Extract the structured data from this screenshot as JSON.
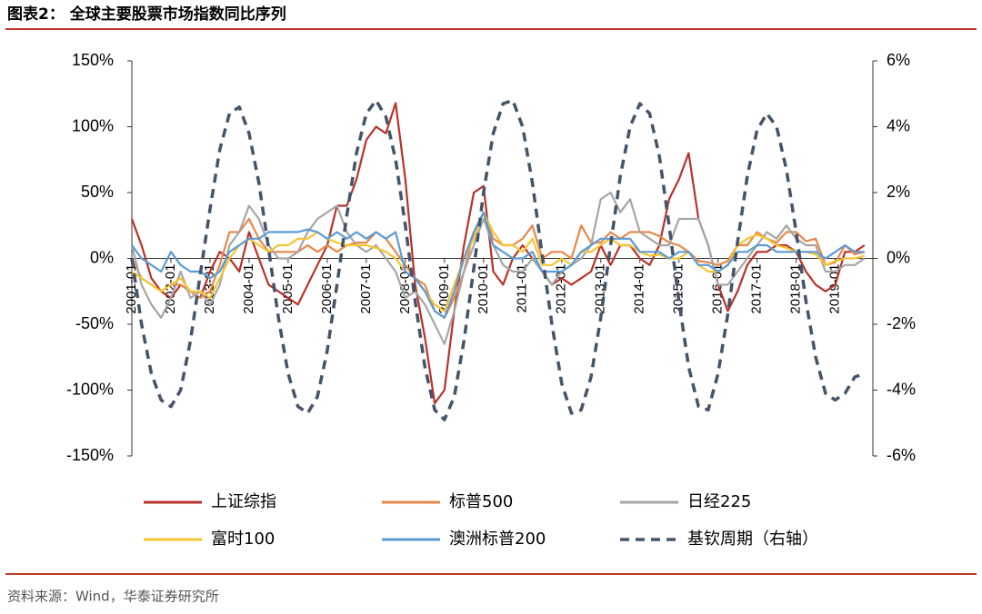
{
  "chart_data": {
    "type": "line",
    "title": "图表2： 全球主要股票市场指数同比序列",
    "source": "资料来源：Wind，华泰证券研究所",
    "x": [
      "2001-01",
      "2001-04",
      "2001-07",
      "2001-10",
      "2002-01",
      "2002-04",
      "2002-07",
      "2002-10",
      "2003-01",
      "2003-04",
      "2003-07",
      "2003-10",
      "2004-01",
      "2004-04",
      "2004-07",
      "2004-10",
      "2005-01",
      "2005-04",
      "2005-07",
      "2005-10",
      "2006-01",
      "2006-04",
      "2006-07",
      "2006-10",
      "2007-01",
      "2007-04",
      "2007-07",
      "2007-10",
      "2008-01",
      "2008-04",
      "2008-07",
      "2008-10",
      "2009-01",
      "2009-04",
      "2009-07",
      "2009-10",
      "2010-01",
      "2010-04",
      "2010-07",
      "2010-10",
      "2011-01",
      "2011-04",
      "2011-07",
      "2011-10",
      "2012-01",
      "2012-04",
      "2012-07",
      "2012-10",
      "2013-01",
      "2013-04",
      "2013-07",
      "2013-10",
      "2014-01",
      "2014-04",
      "2014-07",
      "2014-10",
      "2015-01",
      "2015-04",
      "2015-07",
      "2015-10",
      "2016-01",
      "2016-04",
      "2016-07",
      "2016-10",
      "2017-01",
      "2017-04",
      "2017-07",
      "2017-10",
      "2018-01",
      "2018-04",
      "2018-07",
      "2018-10",
      "2019-01",
      "2019-04",
      "2019-07",
      "2019-10"
    ],
    "xlim": [
      "2001-01",
      "2019-12"
    ],
    "xticks": [
      "2001-01",
      "2002-01",
      "2003-01",
      "2004-01",
      "2005-01",
      "2006-01",
      "2007-01",
      "2008-01",
      "2009-01",
      "2010-01",
      "2011-01",
      "2012-01",
      "2013-01",
      "2014-01",
      "2015-01",
      "2016-01",
      "2017-01",
      "2018-01",
      "2019-01"
    ],
    "ylim": [
      -150,
      150
    ],
    "yticks": [
      {
        "value": -150,
        "label": "-150%"
      },
      {
        "value": -100,
        "label": "-100%"
      },
      {
        "value": -50,
        "label": "-50%"
      },
      {
        "value": 0,
        "label": "0%"
      },
      {
        "value": 50,
        "label": "50%"
      },
      {
        "value": 100,
        "label": "100%"
      },
      {
        "value": 150,
        "label": "150%"
      }
    ],
    "y2lim": [
      -6,
      6
    ],
    "y2ticks": [
      {
        "value": -6,
        "label": "-6%"
      },
      {
        "value": -4,
        "label": "-4%"
      },
      {
        "value": -2,
        "label": "-2%"
      },
      {
        "value": 0,
        "label": "0%"
      },
      {
        "value": 2,
        "label": "2%"
      },
      {
        "value": 4,
        "label": "4%"
      },
      {
        "value": 6,
        "label": "6%"
      }
    ],
    "series": [
      {
        "name": "上证综指",
        "color": "#b8322a",
        "values": [
          30,
          10,
          -15,
          -25,
          -30,
          -20,
          -25,
          -30,
          -10,
          5,
          0,
          -10,
          20,
          0,
          -20,
          -25,
          -30,
          -35,
          -20,
          -5,
          10,
          40,
          40,
          60,
          90,
          100,
          95,
          118,
          60,
          -20,
          -60,
          -110,
          -100,
          -40,
          10,
          50,
          55,
          -10,
          -20,
          0,
          10,
          0,
          -10,
          -20,
          -15,
          -20,
          -15,
          -10,
          10,
          -5,
          10,
          10,
          0,
          -5,
          10,
          45,
          60,
          80,
          30,
          10,
          -20,
          -40,
          -25,
          -5,
          5,
          5,
          10,
          10,
          5,
          -10,
          -20,
          -25,
          -20,
          5,
          5,
          10
        ]
      },
      {
        "name": "标普500",
        "color": "#e8874a",
        "values": [
          0,
          -15,
          -20,
          -25,
          -20,
          -20,
          -25,
          -30,
          -25,
          -5,
          20,
          20,
          30,
          15,
          5,
          5,
          5,
          5,
          10,
          5,
          10,
          5,
          10,
          12,
          12,
          20,
          15,
          5,
          -5,
          -15,
          -20,
          -40,
          -45,
          -30,
          -10,
          20,
          35,
          15,
          10,
          10,
          15,
          25,
          0,
          5,
          5,
          0,
          25,
          12,
          12,
          20,
          15,
          20,
          20,
          20,
          17,
          12,
          10,
          5,
          -2,
          -3,
          -5,
          -2,
          10,
          10,
          20,
          15,
          12,
          20,
          20,
          13,
          15,
          -5,
          -3,
          10,
          3,
          5
        ]
      },
      {
        "name": "日经225",
        "color": "#a6a6a6",
        "values": [
          10,
          -20,
          -35,
          -45,
          -30,
          -10,
          -30,
          -25,
          -35,
          -20,
          10,
          20,
          40,
          30,
          10,
          0,
          0,
          5,
          20,
          30,
          35,
          40,
          20,
          10,
          5,
          10,
          0,
          -10,
          -30,
          -25,
          -35,
          -50,
          -65,
          -40,
          -10,
          10,
          30,
          10,
          -5,
          -10,
          -10,
          0,
          -10,
          -20,
          -10,
          -5,
          0,
          10,
          45,
          50,
          35,
          45,
          20,
          15,
          10,
          10,
          30,
          30,
          30,
          10,
          -20,
          -20,
          -10,
          0,
          10,
          20,
          15,
          25,
          15,
          10,
          10,
          -10,
          -10,
          -5,
          -5,
          0
        ]
      },
      {
        "name": "富时100",
        "color": "#f6c531",
        "values": [
          -10,
          -15,
          -20,
          -25,
          -20,
          -15,
          -25,
          -25,
          -30,
          -15,
          0,
          10,
          15,
          10,
          5,
          10,
          10,
          15,
          15,
          20,
          15,
          12,
          10,
          10,
          10,
          8,
          5,
          0,
          -10,
          -15,
          -25,
          -35,
          -40,
          -20,
          0,
          15,
          35,
          20,
          10,
          10,
          5,
          15,
          -5,
          -5,
          0,
          -5,
          5,
          5,
          10,
          15,
          10,
          10,
          5,
          2,
          3,
          0,
          0,
          5,
          -5,
          -10,
          -10,
          -5,
          10,
          15,
          18,
          15,
          10,
          8,
          5,
          5,
          3,
          -5,
          -2,
          0,
          0,
          2
        ]
      },
      {
        "name": "澳洲标普200",
        "color": "#5b9bd5",
        "values": [
          10,
          0,
          -5,
          -10,
          5,
          -5,
          -10,
          -10,
          -15,
          -10,
          5,
          10,
          15,
          15,
          20,
          20,
          20,
          20,
          22,
          20,
          15,
          20,
          15,
          20,
          15,
          20,
          15,
          20,
          -10,
          -15,
          -25,
          -40,
          -45,
          -25,
          0,
          20,
          35,
          10,
          5,
          0,
          0,
          5,
          -10,
          -10,
          -10,
          -5,
          5,
          10,
          15,
          15,
          15,
          15,
          5,
          5,
          5,
          0,
          5,
          5,
          -5,
          -5,
          -10,
          -5,
          5,
          5,
          10,
          10,
          5,
          5,
          5,
          5,
          5,
          0,
          5,
          10,
          5,
          5
        ]
      },
      {
        "name": "基钦周期（右轴）",
        "color": "#44546a",
        "axis": "y2",
        "dashed": true,
        "values": [
          0,
          -2,
          -3.5,
          -4.3,
          -4.5,
          -4,
          -2.5,
          -0.5,
          1.5,
          3.3,
          4.4,
          4.6,
          3.8,
          2.3,
          0.3,
          -1.8,
          -3.5,
          -4.5,
          -4.7,
          -4.2,
          -2.8,
          -0.8,
          1.3,
          3.2,
          4.4,
          4.8,
          4.3,
          3,
          1,
          -1.3,
          -3.3,
          -4.6,
          -4.9,
          -4.2,
          -2.5,
          -0.3,
          2,
          3.8,
          4.7,
          4.8,
          4,
          2.3,
          0.1,
          -2,
          -3.8,
          -4.7,
          -4.6,
          -3.6,
          -1.8,
          0.4,
          2.5,
          4,
          4.7,
          4.4,
          3.1,
          1,
          -1.3,
          -3.3,
          -4.5,
          -4.6,
          -3.5,
          -1.7,
          0.5,
          2.5,
          3.9,
          4.4,
          4,
          2.7,
          0.8,
          -1.3,
          -3,
          -4.1,
          -4.3,
          -4.1,
          -3.6,
          -3.5
        ]
      }
    ]
  }
}
